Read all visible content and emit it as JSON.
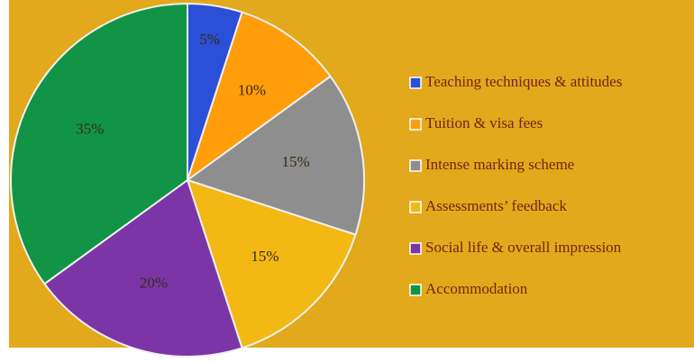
{
  "chart_data": {
    "type": "pie",
    "categories": [
      "Teaching techniques & attitudes",
      "Tuition & visa fees",
      "Intense marking scheme",
      "Assessments’ feedback",
      "Social life & overall impression",
      "Accommodation"
    ],
    "values": [
      5,
      10,
      15,
      15,
      20,
      35
    ],
    "value_labels": [
      "5%",
      "10%",
      "15%",
      "15%",
      "20%",
      "35%"
    ],
    "colors": [
      "#2b4fd6",
      "#ff9d0a",
      "#8e8e8e",
      "#f3b814",
      "#7b35a6",
      "#119445"
    ],
    "background": "#e1a91b"
  }
}
